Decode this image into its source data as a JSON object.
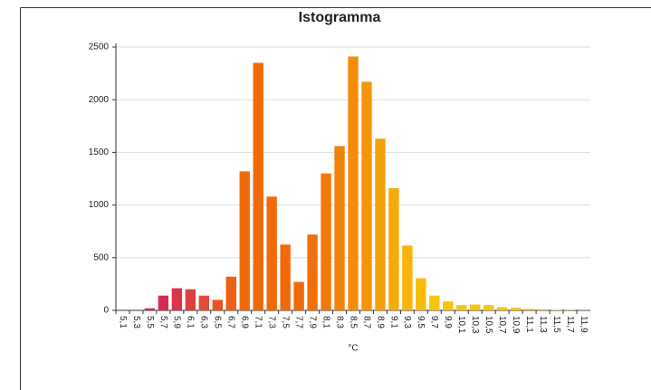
{
  "chart_data": {
    "type": "bar",
    "title": "Istogramma",
    "x_label": "°C",
    "categories": [
      "5,1",
      "5,3",
      "5,5",
      "5,7",
      "5,9",
      "6,1",
      "6,3",
      "6,5",
      "6,7",
      "6,9",
      "7,1",
      "7,3",
      "7,5",
      "7,7",
      "7,9",
      "8,1",
      "8,3",
      "8,5",
      "8,7",
      "8,9",
      "9,1",
      "9,3",
      "9,5",
      "9,7",
      "9,9",
      "10,1",
      "10,3",
      "10,5",
      "10,7",
      "10,9",
      "11,1",
      "11,3",
      "11,5",
      "11,7",
      "11,9"
    ],
    "values": [
      0,
      0,
      20,
      140,
      210,
      200,
      140,
      100,
      320,
      1320,
      2350,
      1080,
      625,
      270,
      720,
      1300,
      1560,
      2410,
      2170,
      1630,
      1160,
      615,
      305,
      140,
      85,
      50,
      55,
      50,
      30,
      25,
      15,
      10,
      5,
      3,
      2
    ],
    "colors": [
      "#d2225f",
      "#d4235d",
      "#d6255e",
      "#d82a55",
      "#db344b",
      "#df3e40",
      "#e34a32",
      "#e85522",
      "#ee6012",
      "#f06a0a",
      "#f06a0a",
      "#f06a0a",
      "#f06a0a",
      "#f06a0a",
      "#f1700a",
      "#f2780a",
      "#f3820a",
      "#f48c0a",
      "#f5960a",
      "#f6a00a",
      "#f7aa0a",
      "#f8b40a",
      "#f9bc0a",
      "#fac40c",
      "#fac40c",
      "#fac40c",
      "#fac40c",
      "#fac40c",
      "#fac40c",
      "#fac40c",
      "#fac40c",
      "#fac40c",
      "#fac40c",
      "#fac40c",
      "#fac40c"
    ],
    "ylim": [
      0,
      2500
    ],
    "yticks": [
      0,
      500,
      1000,
      1500,
      2000,
      2500
    ],
    "grid": true
  }
}
